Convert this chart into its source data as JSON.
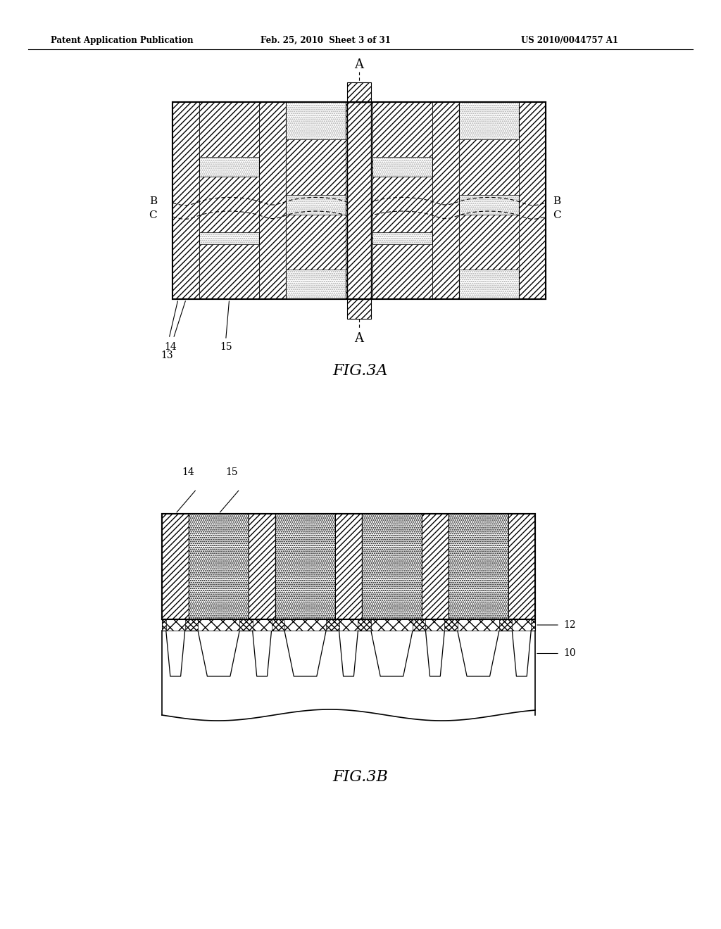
{
  "header_left": "Patent Application Publication",
  "header_mid": "Feb. 25, 2010  Sheet 3 of 31",
  "header_right": "US 2010/0044757 A1",
  "fig3a_label": "FIG.3A",
  "fig3b_label": "FIG.3B",
  "bg_color": "#ffffff"
}
